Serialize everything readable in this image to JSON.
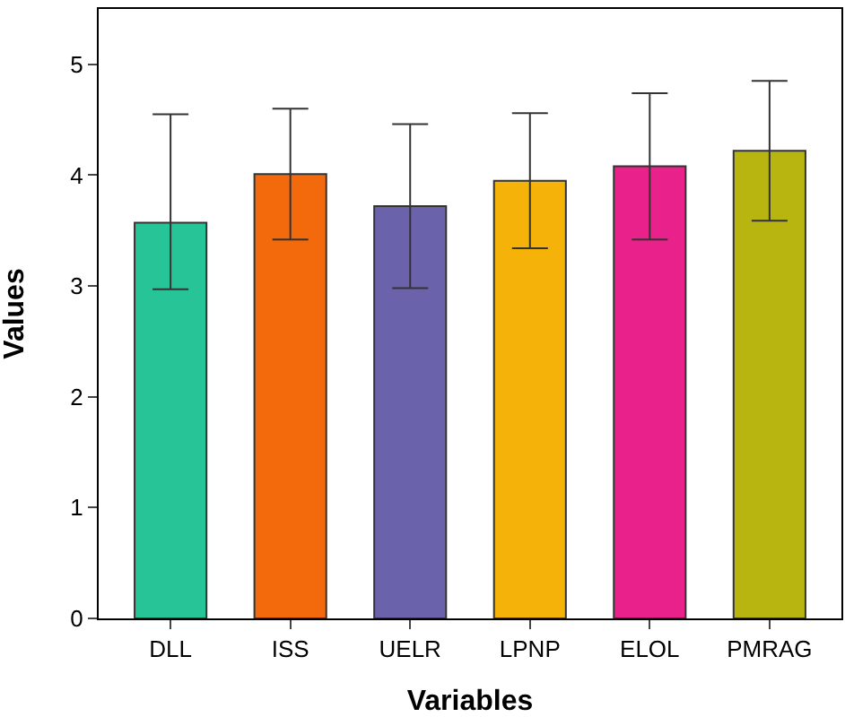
{
  "chart_data": {
    "type": "bar",
    "xlabel": "Variables",
    "ylabel": "Values",
    "categories": [
      "DLL",
      "ISS",
      "UELR",
      "LPNP",
      "ELOL",
      "PMRAG"
    ],
    "values": [
      3.57,
      4.01,
      3.72,
      3.95,
      4.08,
      4.22
    ],
    "errors": [
      [
        2.97,
        4.55
      ],
      [
        3.42,
        4.6
      ],
      [
        2.98,
        4.46
      ],
      [
        3.34,
        4.56
      ],
      [
        3.42,
        4.74
      ],
      [
        3.59,
        4.85
      ]
    ],
    "colors": [
      "#26c496",
      "#f36a0c",
      "#6a62aa",
      "#f5b30a",
      "#e8228a",
      "#b8b410"
    ],
    "ylim": [
      0,
      5.5
    ],
    "yticks": [
      0,
      1,
      2,
      3,
      4,
      5
    ]
  }
}
